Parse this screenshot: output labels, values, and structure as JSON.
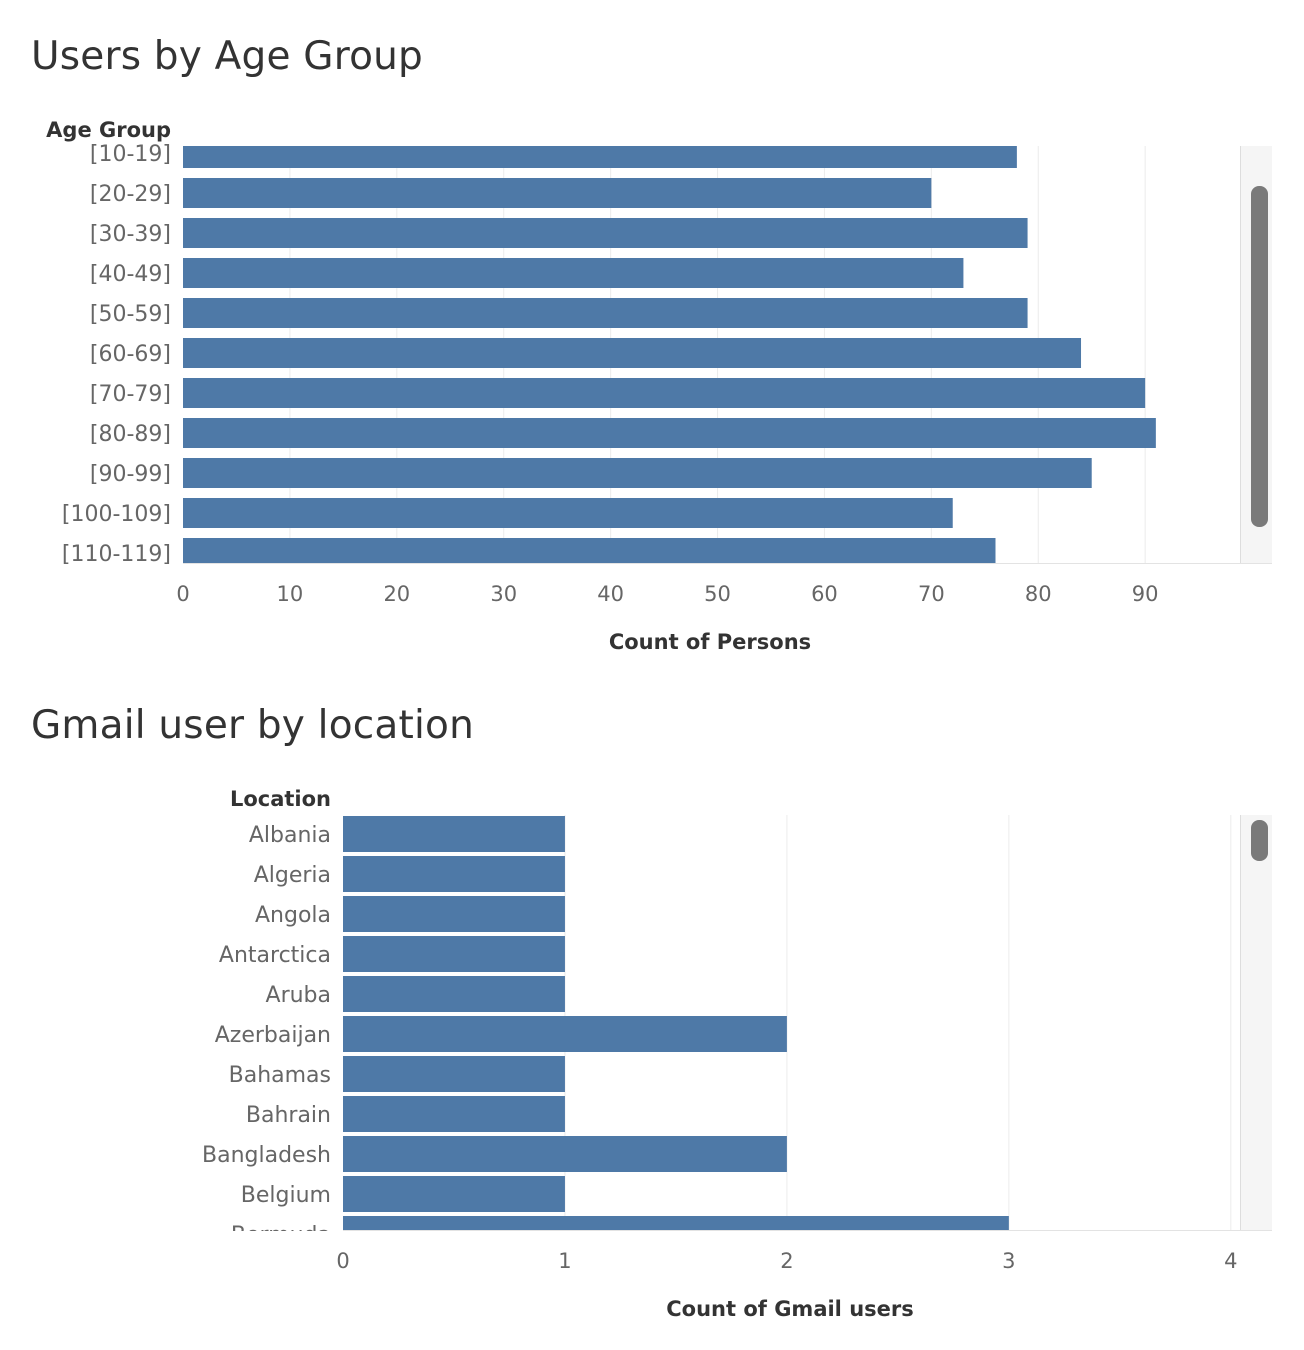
{
  "colors": {
    "bar": "#4e79a7",
    "grid": "#ececec",
    "scroll_thumb": "#7a7a7a",
    "scroll_track": "#f5f5f5"
  },
  "charts": [
    {
      "title": "Users by Age Group",
      "chart_data": {
        "type": "bar",
        "orientation": "horizontal",
        "title": "Users by Age Group",
        "row_header": "Age Group",
        "xlabel": "Count of Persons",
        "categories": [
          "[10-19]",
          "[20-29]",
          "[30-39]",
          "[40-49]",
          "[50-59]",
          "[60-69]",
          "[70-79]",
          "[80-89]",
          "[90-99]",
          "[100-109]",
          "[110-119]"
        ],
        "values": [
          78,
          70,
          79,
          73,
          79,
          84,
          90,
          91,
          85,
          72,
          76
        ],
        "x_ticks": [
          0,
          10,
          20,
          30,
          40,
          50,
          60,
          70,
          80,
          90
        ],
        "xlim": [
          0,
          97
        ],
        "grid": true,
        "scrollbar": true
      }
    },
    {
      "title": "Gmail user by location",
      "chart_data": {
        "type": "bar",
        "orientation": "horizontal",
        "title": "Gmail user by location",
        "row_header": "Location",
        "xlabel": "Count of Gmail users",
        "categories": [
          "Albania",
          "Algeria",
          "Angola",
          "Antarctica",
          "Aruba",
          "Azerbaijan",
          "Bahamas",
          "Bahrain",
          "Bangladesh",
          "Belgium",
          "Bermuda"
        ],
        "values": [
          1,
          1,
          1,
          1,
          1,
          2,
          1,
          1,
          2,
          1,
          3
        ],
        "x_ticks": [
          0,
          1,
          2,
          3,
          4
        ],
        "xlim": [
          0,
          4.1
        ],
        "grid": true,
        "scrollbar": true
      }
    }
  ]
}
